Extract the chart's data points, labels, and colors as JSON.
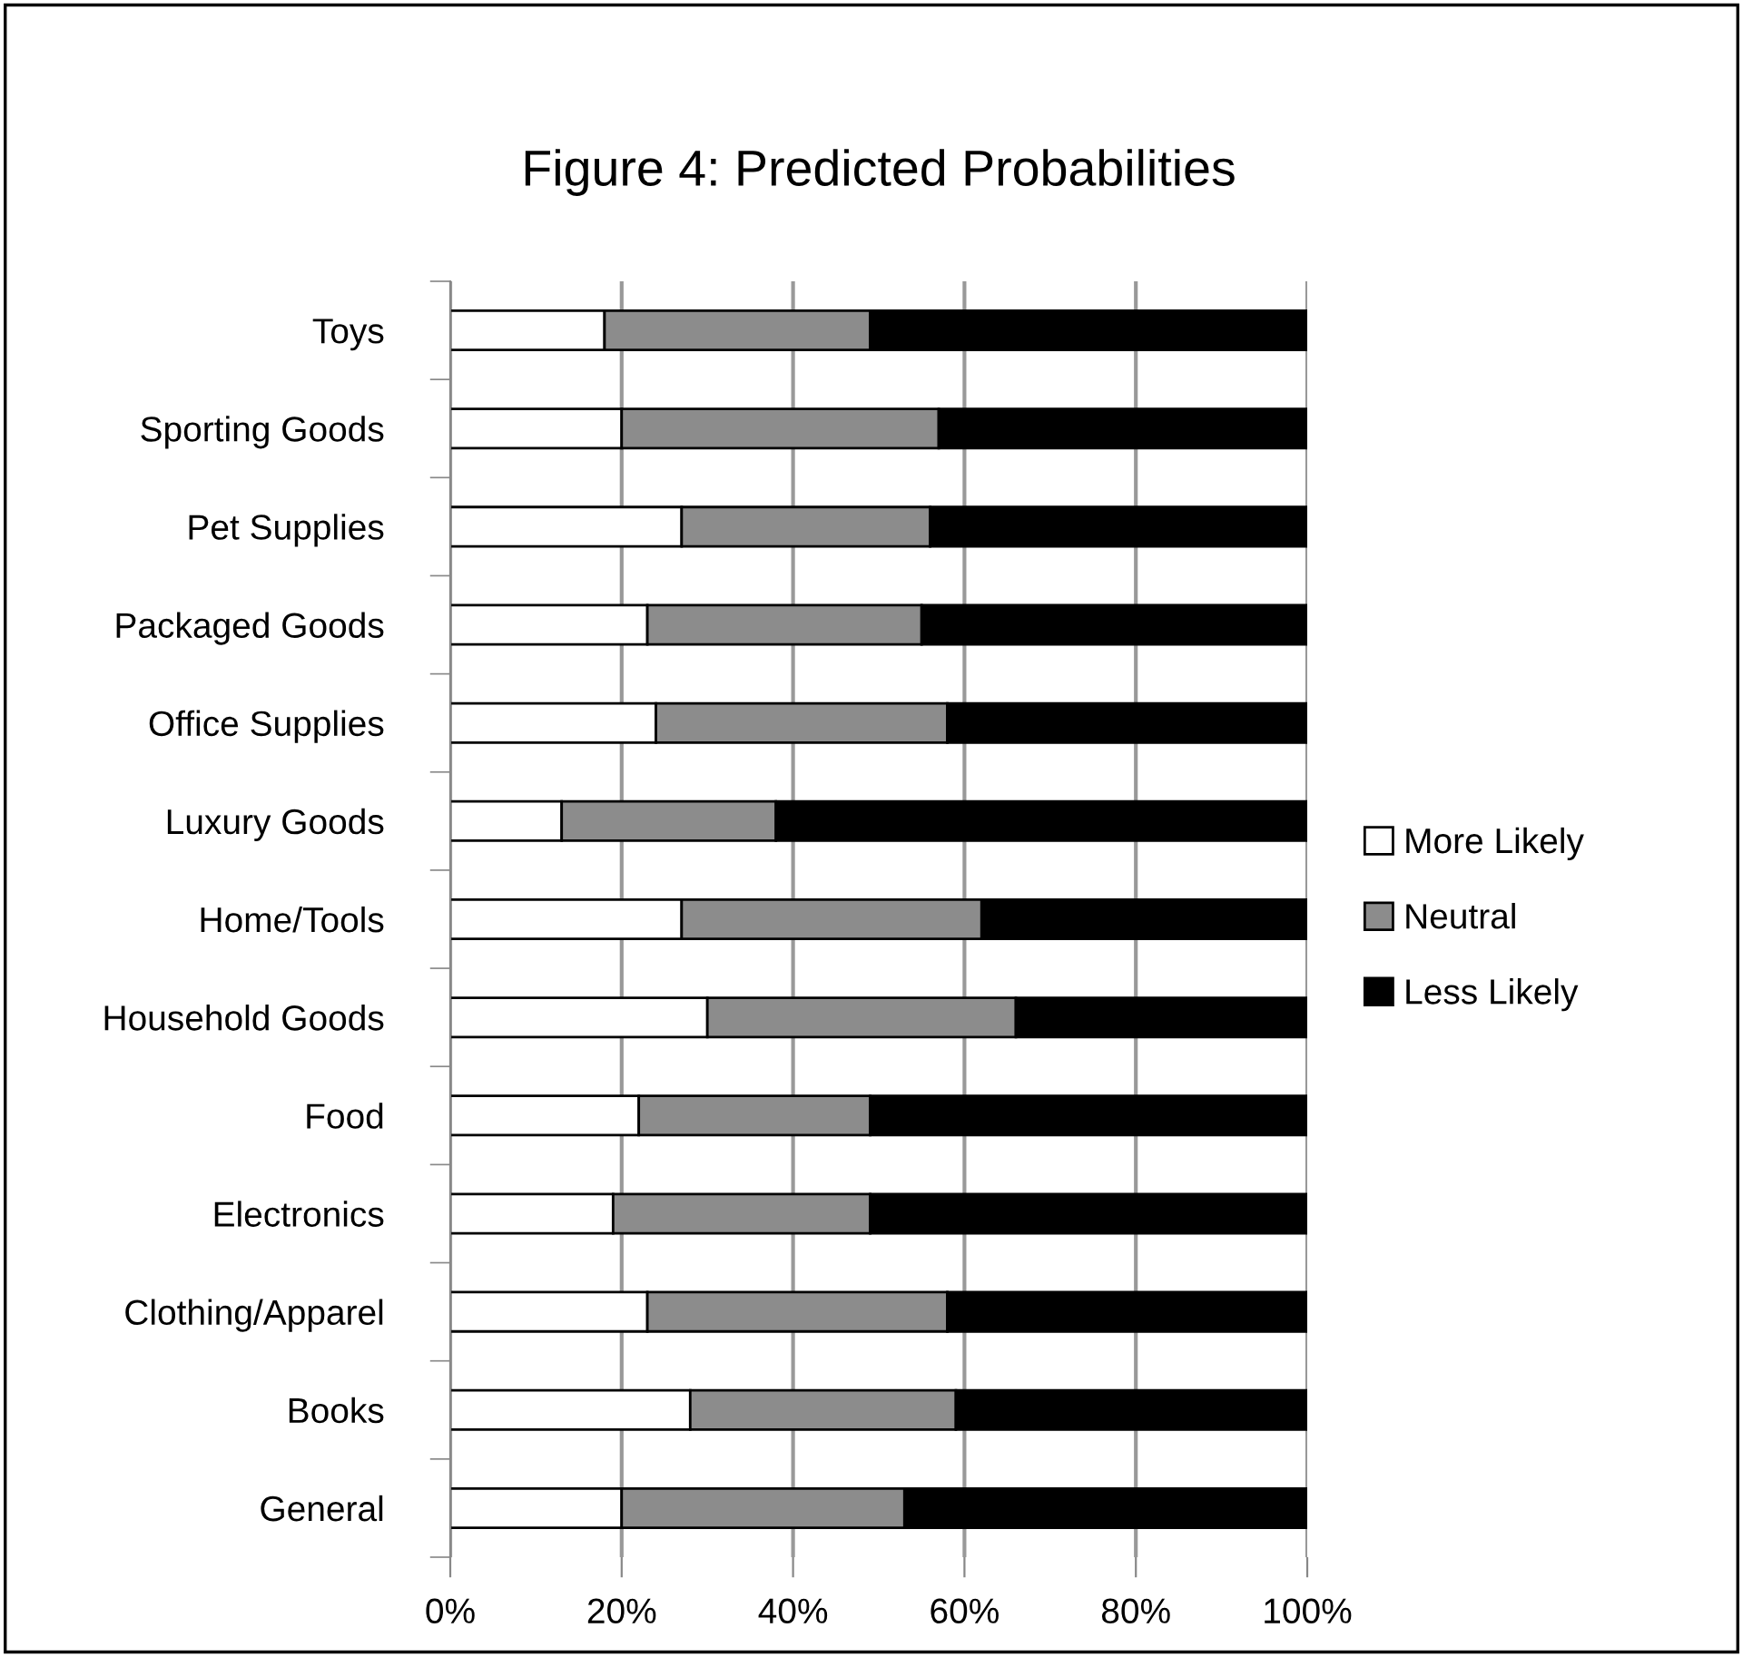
{
  "chart_data": {
    "type": "bar",
    "title": "Figure 4: Predicted Probabilities",
    "orientation": "horizontal",
    "stacked": true,
    "categories": [
      "Toys",
      "Sporting Goods",
      "Pet Supplies",
      "Packaged Goods",
      "Office Supplies",
      "Luxury Goods",
      "Home/Tools",
      "Household Goods",
      "Food",
      "Electronics",
      "Clothing/Apparel",
      "Books",
      "General"
    ],
    "series": [
      {
        "name": "More Likely",
        "color": "#ffffff",
        "values": [
          18,
          20,
          27,
          23,
          24,
          13,
          27,
          30,
          22,
          19,
          23,
          28,
          20
        ]
      },
      {
        "name": "Neutral",
        "color": "#8c8c8c",
        "values": [
          31,
          37,
          29,
          32,
          34,
          25,
          35,
          36,
          27,
          30,
          35,
          31,
          33
        ]
      },
      {
        "name": "Less Likely",
        "color": "#000000",
        "values": [
          51,
          43,
          44,
          45,
          42,
          62,
          38,
          34,
          51,
          51,
          42,
          41,
          47
        ]
      }
    ],
    "xlim": [
      0,
      100
    ],
    "xticks": [
      {
        "value": 0,
        "label": "0%"
      },
      {
        "value": 20,
        "label": "20%"
      },
      {
        "value": 40,
        "label": "40%"
      },
      {
        "value": 60,
        "label": "60%"
      },
      {
        "value": 80,
        "label": "80%"
      },
      {
        "value": 100,
        "label": "100%"
      }
    ],
    "grid": "x",
    "legend": "right"
  }
}
